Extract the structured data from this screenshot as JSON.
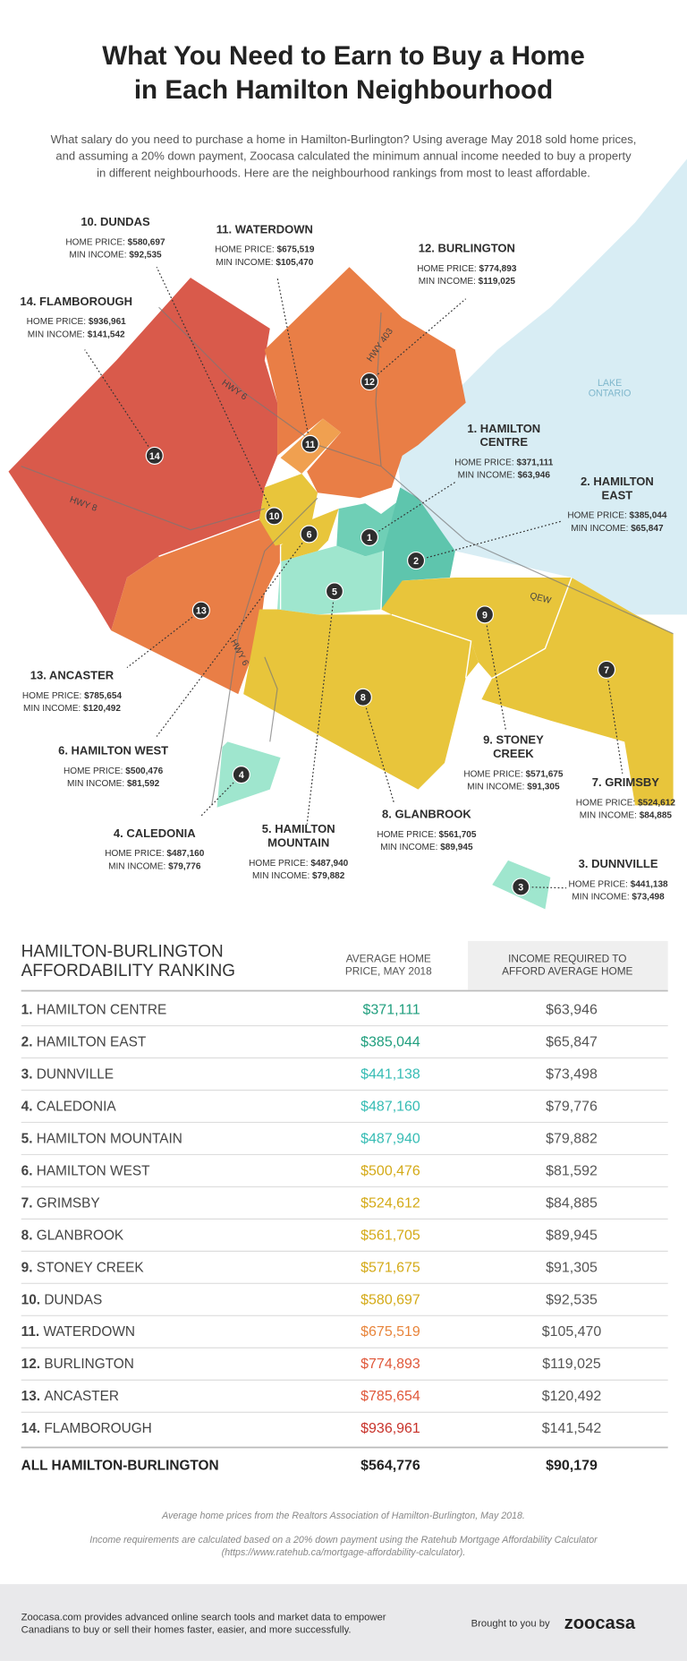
{
  "header": {
    "title_lines": [
      "What You Need to Earn to Buy a Home",
      "in Each Hamilton Neighbourhood"
    ],
    "intro_lines": [
      "What salary do you need to purchase a home in Hamilton-Burlington? Using average May 2018 sold home prices,",
      "and assuming a 20% down payment, Zoocasa calculated the minimum annual income needed to buy a property",
      "in different neighbourhoods. Here are the neighbourhood rankings from most to least affordable."
    ]
  },
  "map": {
    "lake_lines": [
      "LAKE",
      "ONTARIO"
    ],
    "highways": [
      "HWY 403",
      "HWY 6",
      "HWY 8",
      "QEW",
      "HWY 6"
    ],
    "neighbourhoods": [
      {
        "number": "1",
        "name_lines": [
          "1. HAMILTON",
          "CENTRE"
        ],
        "price_label": "HOME PRICE:",
        "price": "$371,111",
        "income_label": "MIN INCOME:",
        "income": "$63,946"
      },
      {
        "number": "2",
        "name_lines": [
          "2. HAMILTON",
          "EAST"
        ],
        "price_label": "HOME PRICE:",
        "price": "$385,044",
        "income_label": "MIN INCOME:",
        "income": "$65,847"
      },
      {
        "number": "3",
        "name_lines": [
          "3. DUNNVILLE"
        ],
        "price_label": "HOME PRICE:",
        "price": "$441,138",
        "income_label": "MIN INCOME:",
        "income": "$73,498"
      },
      {
        "number": "4",
        "name_lines": [
          "4. CALEDONIA"
        ],
        "price_label": "HOME PRICE:",
        "price": "$487,160",
        "income_label": "MIN INCOME:",
        "income": "$79,776"
      },
      {
        "number": "5",
        "name_lines": [
          "5. HAMILTON",
          "MOUNTAIN"
        ],
        "price_label": "HOME PRICE:",
        "price": "$487,940",
        "income_label": "MIN INCOME:",
        "income": "$79,882"
      },
      {
        "number": "6",
        "name_lines": [
          "6. HAMILTON WEST"
        ],
        "price_label": "HOME PRICE:",
        "price": "$500,476",
        "income_label": "MIN INCOME:",
        "income": "$81,592"
      },
      {
        "number": "7",
        "name_lines": [
          "7. GRIMSBY"
        ],
        "price_label": "HOME PRICE:",
        "price": "$524,612",
        "income_label": "MIN INCOME:",
        "income": "$84,885"
      },
      {
        "number": "8",
        "name_lines": [
          "8. GLANBROOK"
        ],
        "price_label": "HOME PRICE:",
        "price": "$561,705",
        "income_label": "MIN INCOME:",
        "income": "$89,945"
      },
      {
        "number": "9",
        "name_lines": [
          "9. STONEY",
          "CREEK"
        ],
        "price_label": "HOME PRICE:",
        "price": "$571,675",
        "income_label": "MIN INCOME:",
        "income": "$91,305"
      },
      {
        "number": "10",
        "name_lines": [
          "10. DUNDAS"
        ],
        "price_label": "HOME PRICE:",
        "price": "$580,697",
        "income_label": "MIN INCOME:",
        "income": "$92,535"
      },
      {
        "number": "11",
        "name_lines": [
          "11. WATERDOWN"
        ],
        "price_label": "HOME PRICE:",
        "price": "$675,519",
        "income_label": "MIN INCOME:",
        "income": "$105,470"
      },
      {
        "number": "12",
        "name_lines": [
          "12. BURLINGTON"
        ],
        "price_label": "HOME PRICE:",
        "price": "$774,893",
        "income_label": "MIN INCOME:",
        "income": "$119,025"
      },
      {
        "number": "13",
        "name_lines": [
          "13. ANCASTER"
        ],
        "price_label": "HOME PRICE:",
        "price": "$785,654",
        "income_label": "MIN INCOME:",
        "income": "$120,492"
      },
      {
        "number": "14",
        "name_lines": [
          "14. FLAMBOROUGH"
        ],
        "price_label": "HOME PRICE:",
        "price": "$936,961",
        "income_label": "MIN INCOME:",
        "income": "$141,542"
      }
    ]
  },
  "table": {
    "title_lines": [
      "HAMILTON-BURLINGTON",
      "AFFORDABILITY RANKING"
    ],
    "price_header_lines": [
      "AVERAGE HOME",
      "PRICE, MAY 2018"
    ],
    "income_header_lines": [
      "INCOME REQUIRED TO",
      "AFFORD AVERAGE HOME"
    ],
    "rows": [
      {
        "rank": "1.",
        "name": "HAMILTON CENTRE",
        "price": "$371,111",
        "income": "$63,946",
        "color": "#1f9e7d"
      },
      {
        "rank": "2.",
        "name": "HAMILTON EAST",
        "price": "$385,044",
        "income": "$65,847",
        "color": "#1f9e7d"
      },
      {
        "rank": "3.",
        "name": "DUNNVILLE",
        "price": "$441,138",
        "income": "$73,498",
        "color": "#36bcb4"
      },
      {
        "rank": "4.",
        "name": "CALEDONIA",
        "price": "$487,160",
        "income": "$79,776",
        "color": "#36bcb4"
      },
      {
        "rank": "5.",
        "name": "HAMILTON MOUNTAIN",
        "price": "$487,940",
        "income": "$79,882",
        "color": "#36bcb4"
      },
      {
        "rank": "6.",
        "name": "HAMILTON WEST",
        "price": "$500,476",
        "income": "$81,592",
        "color": "#d4aa17"
      },
      {
        "rank": "7.",
        "name": "GRIMSBY",
        "price": "$524,612",
        "income": "$84,885",
        "color": "#d4aa17"
      },
      {
        "rank": "8.",
        "name": "GLANBROOK",
        "price": "$561,705",
        "income": "$89,945",
        "color": "#d4aa17"
      },
      {
        "rank": "9.",
        "name": "STONEY CREEK",
        "price": "$571,675",
        "income": "$91,305",
        "color": "#d4aa17"
      },
      {
        "rank": "10.",
        "name": "DUNDAS",
        "price": "$580,697",
        "income": "$92,535",
        "color": "#d4aa17"
      },
      {
        "rank": "11.",
        "name": "WATERDOWN",
        "price": "$675,519",
        "income": "$105,470",
        "color": "#e8843a"
      },
      {
        "rank": "12.",
        "name": "BURLINGTON",
        "price": "$774,893",
        "income": "$119,025",
        "color": "#e0583a"
      },
      {
        "rank": "13.",
        "name": "ANCASTER",
        "price": "$785,654",
        "income": "$120,492",
        "color": "#e0583a"
      },
      {
        "rank": "14.",
        "name": "FLAMBOROUGH",
        "price": "$936,961",
        "income": "$141,542",
        "color": "#c8322a"
      }
    ],
    "total": {
      "name": "ALL HAMILTON-BURLINGTON",
      "price": "$564,776",
      "income": "$90,179"
    }
  },
  "notes": [
    "Average home prices from the Realtors Association of Hamilton-Burlington, May 2018.",
    "Income requirements are calculated based on a 20% down payment using the Ratehub Mortgage Affordability Calculator",
    "(https://www.ratehub.ca/mortgage-affordability-calculator)."
  ],
  "footer": {
    "text_lines": [
      "Zoocasa.com provides advanced online search tools and market data to empower",
      "Canadians to buy or sell their homes faster, easier, and more successfully."
    ],
    "brought": "Brought to you by",
    "logo": "zoocasa"
  }
}
